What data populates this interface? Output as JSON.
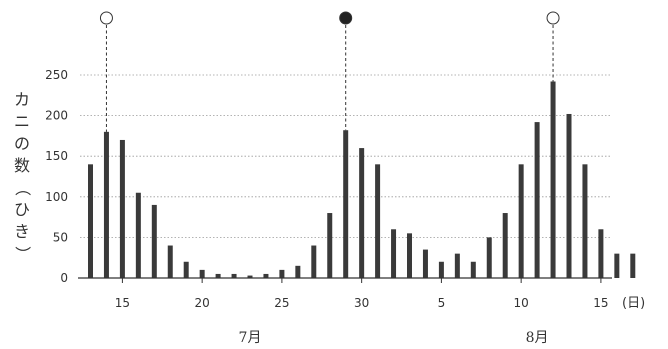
{
  "chart_data": {
    "type": "bar",
    "ylabel": "カニの数（ひき）",
    "x_unit": "(日)",
    "ylim": [
      0,
      250
    ],
    "y_ticks": [
      0,
      50,
      100,
      150,
      200,
      250
    ],
    "grid": true,
    "categories": [
      "7/13",
      "7/14",
      "7/15",
      "7/16",
      "7/17",
      "7/18",
      "7/19",
      "7/20",
      "7/21",
      "7/22",
      "7/23",
      "7/24",
      "7/25",
      "7/26",
      "7/27",
      "7/28",
      "7/29",
      "7/30",
      "7/31",
      "8/1",
      "8/2",
      "8/3",
      "8/4",
      "8/5",
      "8/6",
      "8/7",
      "8/8",
      "8/9",
      "8/10",
      "8/11",
      "8/12",
      "8/13",
      "8/14",
      "8/15",
      "8/16"
    ],
    "values": [
      140,
      180,
      170,
      105,
      90,
      40,
      20,
      10,
      5,
      5,
      3,
      5,
      10,
      15,
      40,
      80,
      182,
      160,
      140,
      60,
      55,
      35,
      20,
      30,
      20,
      50,
      80,
      140,
      192,
      242,
      202,
      140,
      60,
      30,
      30
    ],
    "x_tick_labels": [
      {
        "day_index": 2,
        "label": "15"
      },
      {
        "day_index": 7,
        "label": "20"
      },
      {
        "day_index": 12,
        "label": "25"
      },
      {
        "day_index": 17,
        "label": "30"
      },
      {
        "day_index": 22,
        "label": "5"
      },
      {
        "day_index": 27,
        "label": "10"
      },
      {
        "day_index": 32,
        "label": "15"
      }
    ],
    "months": [
      {
        "label": "7月",
        "center_day_index": 10
      },
      {
        "label": "8月",
        "center_day_index": 28
      }
    ],
    "moon_markers": [
      {
        "day_index": 1,
        "phase": "full-moon",
        "fill": "#ffffff"
      },
      {
        "day_index": 16,
        "phase": "new-moon",
        "fill": "#222222"
      },
      {
        "day_index": 29,
        "phase": "full-moon",
        "fill": "#ffffff"
      }
    ],
    "bar_color": "#3a3a3a"
  }
}
